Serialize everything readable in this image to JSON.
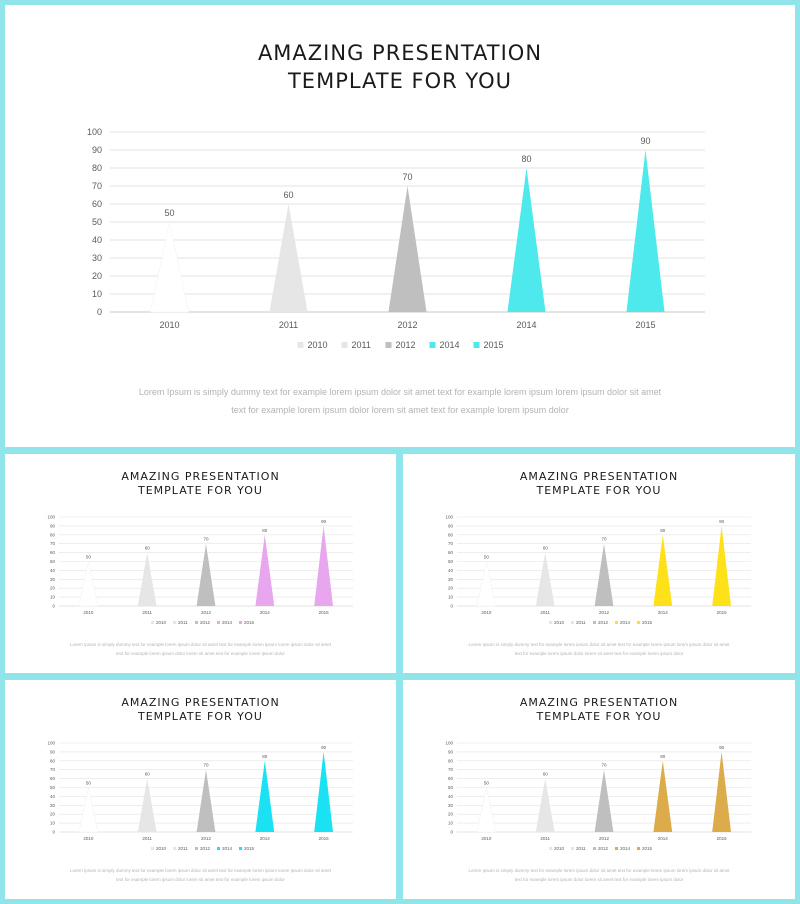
{
  "slides": [
    {
      "title_line1": "AMAZING PRESENTATION",
      "title_line2": "TEMPLATE FOR YOU",
      "body_line1": "Lorem Ipsum is simply dummy text for example lorem ipsum dolor sit amet text for example lorem ipsum lorem ipsum dolor sit amet",
      "body_line2": "text for example lorem ipsum dolor lorem sit amet text for example lorem ipsum dolor",
      "accent": "#4ee9ec"
    },
    {
      "title_line1": "AMAZING PRESENTATION",
      "title_line2": "TEMPLATE FOR YOU",
      "body_line1": "Lorem Ipsum is simply dummy text for example lorem ipsum dolor sit amet text for example lorem ipsum lorem ipsum dolor sit amet",
      "body_line2": "text for example lorem ipsum dolor lorem sit amet text for example lorem ipsum dolor",
      "accent": "#e8a6ee"
    },
    {
      "title_line1": "AMAZING PRESENTATION",
      "title_line2": "TEMPLATE FOR YOU",
      "body_line1": "Lorem Ipsum is simply dummy text for example lorem ipsum dolor sit amet text for example lorem ipsum lorem ipsum dolor sit amet",
      "body_line2": "text for example lorem ipsum dolor lorem sit amet text for example lorem ipsum dolor",
      "accent": "#ffe11a"
    },
    {
      "title_line1": "AMAZING PRESENTATION",
      "title_line2": "TEMPLATE FOR YOU",
      "body_line1": "Lorem Ipsum is simply dummy text for example lorem ipsum dolor sit amet text for example lorem ipsum lorem ipsum dolor sit amet",
      "body_line2": "text for example lorem ipsum dolor lorem sit amet text for example lorem ipsum dolor",
      "accent": "#1ae2f2"
    },
    {
      "title_line1": "AMAZING PRESENTATION",
      "title_line2": "TEMPLATE FOR YOU",
      "body_line1": "Lorem Ipsum is simply dummy text for example lorem ipsum dolor sit amet text for example lorem ipsum lorem ipsum dolor sit amet",
      "body_line2": "text for example lorem ipsum dolor lorem sit amet text for example lorem ipsum dolor",
      "accent": "#dcac4a"
    }
  ],
  "chart_data": [
    {
      "type": "bar",
      "shape": "triangle",
      "categories": [
        "2010",
        "2011",
        "2012",
        "2014",
        "2015"
      ],
      "values": [
        50,
        60,
        70,
        80,
        90
      ],
      "legend": [
        "2010",
        "2011",
        "2012",
        "2014",
        "2015"
      ],
      "legend_position": "bottom",
      "ylim": [
        0,
        100
      ],
      "yticks": [
        0,
        10,
        20,
        30,
        40,
        50,
        60,
        70,
        80,
        90,
        100
      ],
      "grid": true,
      "colors": [
        "#ffffff",
        "#e6e6e6",
        "#bfbfbf",
        "#4ee9ec",
        "#4ee9ec"
      ]
    },
    {
      "type": "bar",
      "shape": "triangle",
      "categories": [
        "2010",
        "2011",
        "2012",
        "2014",
        "2015"
      ],
      "values": [
        50,
        60,
        70,
        80,
        90
      ],
      "legend": [
        "2010",
        "2011",
        "2012",
        "2014",
        "2015"
      ],
      "legend_position": "bottom",
      "ylim": [
        0,
        100
      ],
      "yticks": [
        0,
        10,
        20,
        30,
        40,
        50,
        60,
        70,
        80,
        90,
        100
      ],
      "grid": true,
      "colors": [
        "#ffffff",
        "#e6e6e6",
        "#bfbfbf",
        "#e8a6ee",
        "#e8a6ee"
      ]
    },
    {
      "type": "bar",
      "shape": "triangle",
      "categories": [
        "2010",
        "2011",
        "2012",
        "2014",
        "2015"
      ],
      "values": [
        50,
        60,
        70,
        80,
        90
      ],
      "legend": [
        "2010",
        "2011",
        "2012",
        "2014",
        "2015"
      ],
      "legend_position": "bottom",
      "ylim": [
        0,
        100
      ],
      "yticks": [
        0,
        10,
        20,
        30,
        40,
        50,
        60,
        70,
        80,
        90,
        100
      ],
      "grid": true,
      "colors": [
        "#ffffff",
        "#e6e6e6",
        "#bfbfbf",
        "#ffe11a",
        "#ffe11a"
      ]
    },
    {
      "type": "bar",
      "shape": "triangle",
      "categories": [
        "2010",
        "2011",
        "2012",
        "2014",
        "2015"
      ],
      "values": [
        50,
        60,
        70,
        80,
        90
      ],
      "legend": [
        "2010",
        "2011",
        "2012",
        "2014",
        "2015"
      ],
      "legend_position": "bottom",
      "ylim": [
        0,
        100
      ],
      "yticks": [
        0,
        10,
        20,
        30,
        40,
        50,
        60,
        70,
        80,
        90,
        100
      ],
      "grid": true,
      "colors": [
        "#ffffff",
        "#e6e6e6",
        "#bfbfbf",
        "#1ae2f2",
        "#1ae2f2"
      ]
    },
    {
      "type": "bar",
      "shape": "triangle",
      "categories": [
        "2010",
        "2011",
        "2012",
        "2014",
        "2015"
      ],
      "values": [
        50,
        60,
        70,
        80,
        90
      ],
      "legend": [
        "2010",
        "2011",
        "2012",
        "2014",
        "2015"
      ],
      "legend_position": "bottom",
      "ylim": [
        0,
        100
      ],
      "yticks": [
        0,
        10,
        20,
        30,
        40,
        50,
        60,
        70,
        80,
        90,
        100
      ],
      "grid": true,
      "colors": [
        "#ffffff",
        "#e6e6e6",
        "#bfbfbf",
        "#dcac4a",
        "#dcac4a"
      ]
    }
  ]
}
